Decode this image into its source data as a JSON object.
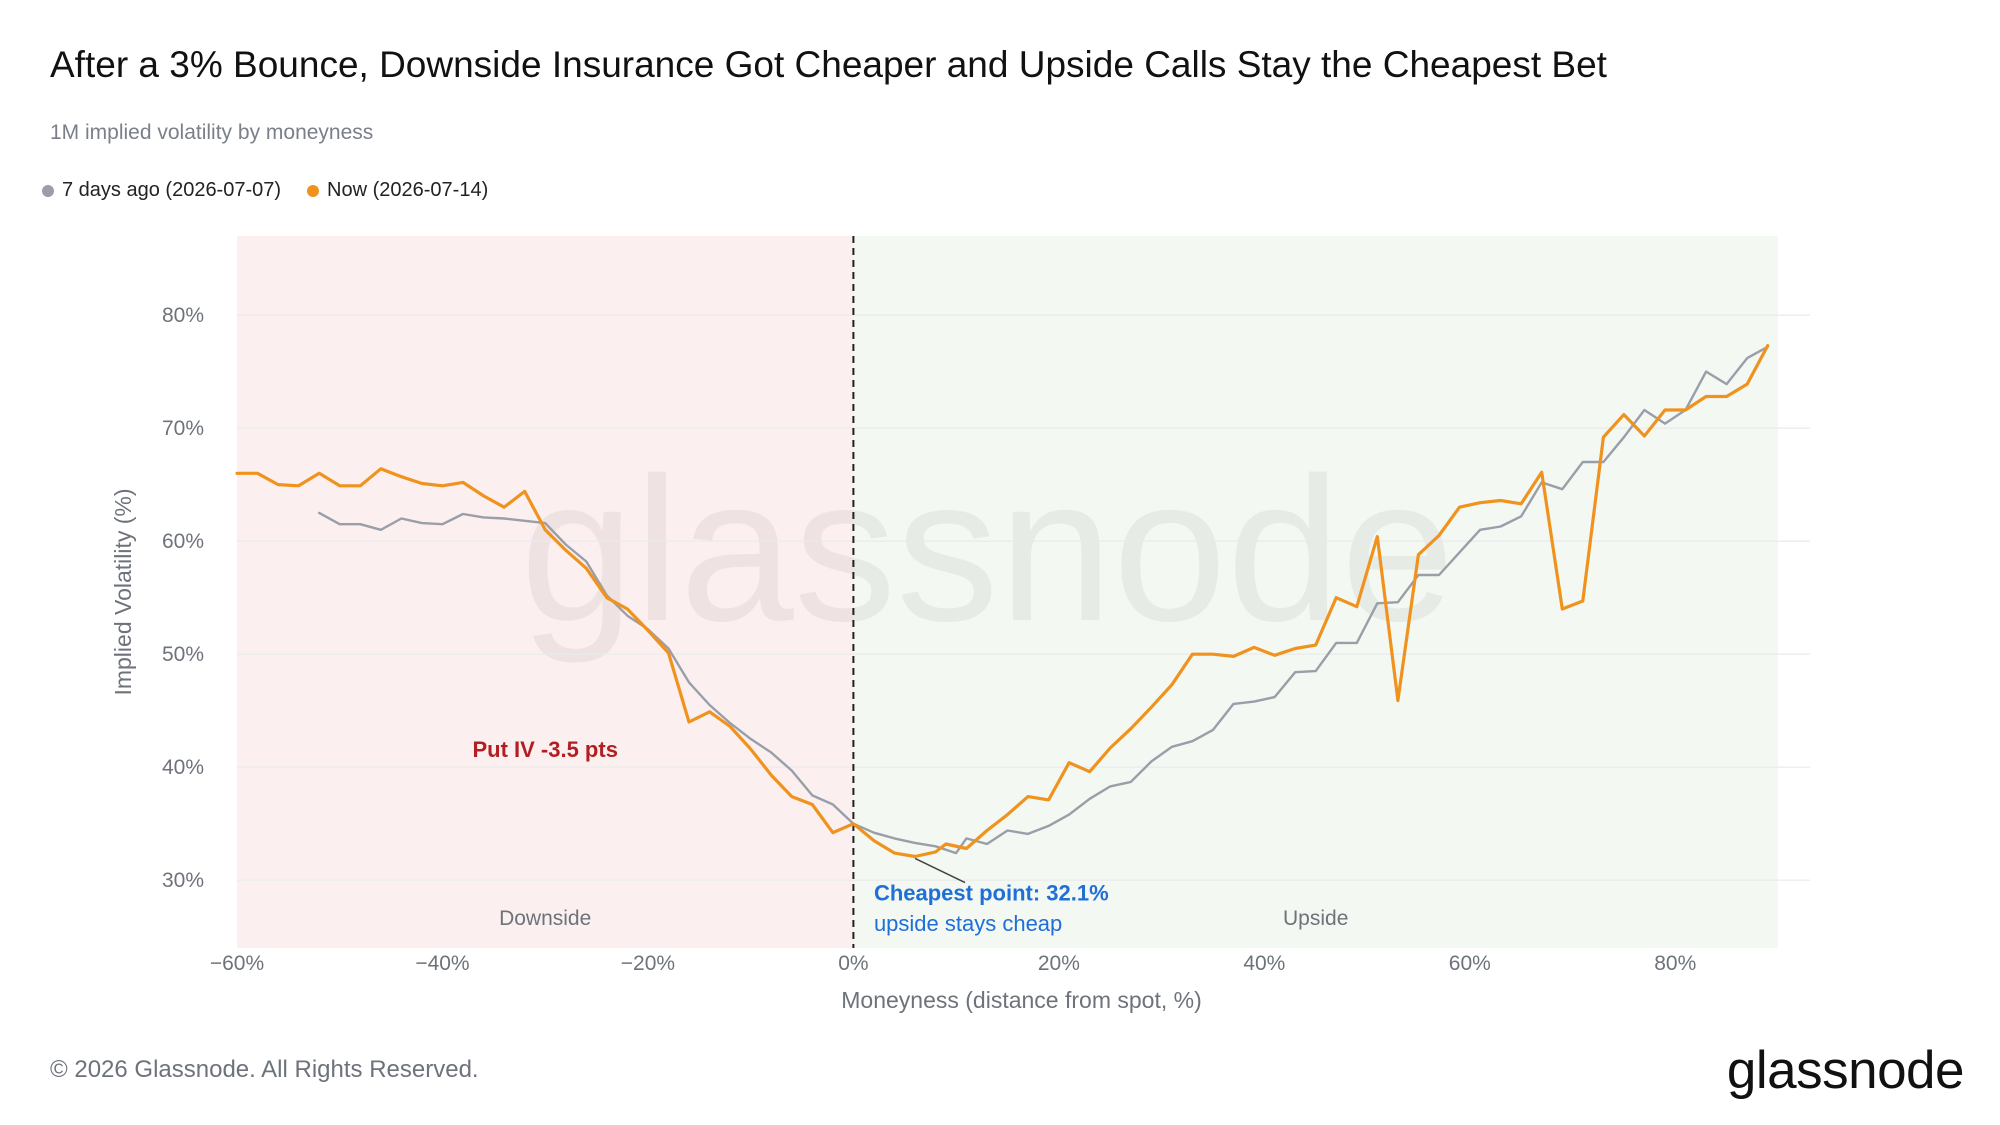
{
  "page": {
    "title": "After a 3% Bounce, Downside Insurance Got Cheaper and Upside Calls Stay the Cheapest Bet",
    "subtitle": "1M implied volatility by moneyness",
    "footer": "© 2026 Glassnode. All Rights Reserved.",
    "logo": "glassnode",
    "watermark": "glassnode"
  },
  "colors": {
    "series_old": "#9a9ea8",
    "series_now": "#f0921e",
    "downside_bg": "#fbf0ef",
    "upside_bg": "#f3f8f3",
    "annotation_put": "#b21f22",
    "annotation_cheap": "#1f6fd6",
    "axis_text": "#6e737b",
    "grid": "#e9eaec"
  },
  "chart_data": {
    "type": "line",
    "title": "After a 3% Bounce, Downside Insurance Got Cheaper and Upside Calls Stay the Cheapest Bet",
    "subtitle": "1M implied volatility by moneyness",
    "xlabel": "Moneyness (distance from spot, %)",
    "ylabel": "Implied Volatility (%)",
    "xlim": [
      -60,
      90
    ],
    "ylim": [
      24,
      87
    ],
    "x_ticks": [
      -60,
      -40,
      -20,
      0,
      20,
      40,
      60,
      80
    ],
    "x_tick_labels": [
      "−60%",
      "−40%",
      "−20%",
      "0%",
      "20%",
      "40%",
      "60%",
      "80%"
    ],
    "y_ticks": [
      30,
      40,
      50,
      60,
      70,
      80
    ],
    "y_tick_labels": [
      "30%",
      "40%",
      "50%",
      "60%",
      "70%",
      "80%"
    ],
    "grid": true,
    "legend_position": "top-left",
    "regions": [
      {
        "label": "Downside",
        "x_from": -60,
        "x_to": 0,
        "label_x": -30
      },
      {
        "label": "Upside",
        "x_from": 0,
        "x_to": 90,
        "label_x": 45
      }
    ],
    "reference_line_x": 0,
    "series": [
      {
        "name": "7 days ago (2026-07-07)",
        "color": "#9a9ea8",
        "points": [
          [
            -52,
            62.5
          ],
          [
            -50,
            61.5
          ],
          [
            -48,
            61.5
          ],
          [
            -46,
            61
          ],
          [
            -44,
            62
          ],
          [
            -42,
            61.6
          ],
          [
            -40,
            61.5
          ],
          [
            -38,
            62.4
          ],
          [
            -36,
            62.1
          ],
          [
            -34,
            62
          ],
          [
            -32,
            61.8
          ],
          [
            -30,
            61.6
          ],
          [
            -28,
            59.7
          ],
          [
            -26,
            58.2
          ],
          [
            -24,
            55.2
          ],
          [
            -22,
            53.4
          ],
          [
            -20,
            52.2
          ],
          [
            -18,
            50.5
          ],
          [
            -16,
            47.5
          ],
          [
            -14,
            45.5
          ],
          [
            -12,
            43.9
          ],
          [
            -10,
            42.5
          ],
          [
            -8,
            41.3
          ],
          [
            -6,
            39.7
          ],
          [
            -4,
            37.5
          ],
          [
            -2,
            36.7
          ],
          [
            0,
            35
          ],
          [
            2,
            34.2
          ],
          [
            4,
            33.7
          ],
          [
            6,
            33.3
          ],
          [
            8,
            33
          ],
          [
            10,
            32.4
          ],
          [
            11,
            33.7
          ],
          [
            13,
            33.2
          ],
          [
            15,
            34.4
          ],
          [
            17,
            34.1
          ],
          [
            19,
            34.8
          ],
          [
            21,
            35.8
          ],
          [
            23,
            37.2
          ],
          [
            25,
            38.3
          ],
          [
            27,
            38.7
          ],
          [
            29,
            40.5
          ],
          [
            31,
            41.8
          ],
          [
            33,
            42.3
          ],
          [
            35,
            43.3
          ],
          [
            37,
            45.6
          ],
          [
            39,
            45.8
          ],
          [
            41,
            46.2
          ],
          [
            43,
            48.4
          ],
          [
            45,
            48.5
          ],
          [
            47,
            51
          ],
          [
            49,
            51
          ],
          [
            51,
            54.5
          ],
          [
            53,
            54.6
          ],
          [
            55,
            57
          ],
          [
            57,
            57
          ],
          [
            59,
            59
          ],
          [
            61,
            61
          ],
          [
            63,
            61.3
          ],
          [
            65,
            62.2
          ],
          [
            67,
            65.2
          ],
          [
            69,
            64.6
          ],
          [
            71,
            67
          ],
          [
            73,
            67
          ],
          [
            75,
            69.2
          ],
          [
            77,
            71.6
          ],
          [
            79,
            70.4
          ],
          [
            81,
            71.6
          ],
          [
            83,
            75
          ],
          [
            85,
            73.9
          ],
          [
            87,
            76.2
          ],
          [
            89,
            77.2
          ]
        ]
      },
      {
        "name": "Now (2026-07-14)",
        "color": "#f0921e",
        "points": [
          [
            -60,
            66
          ],
          [
            -58,
            66
          ],
          [
            -56,
            65
          ],
          [
            -54,
            64.9
          ],
          [
            -52,
            66
          ],
          [
            -50,
            64.9
          ],
          [
            -48,
            64.9
          ],
          [
            -46,
            66.4
          ],
          [
            -44,
            65.7
          ],
          [
            -42,
            65.1
          ],
          [
            -40,
            64.9
          ],
          [
            -38,
            65.2
          ],
          [
            -36,
            64
          ],
          [
            -34,
            63
          ],
          [
            -32,
            64.4
          ],
          [
            -30,
            61
          ],
          [
            -28,
            59.2
          ],
          [
            -26,
            57.6
          ],
          [
            -24,
            55
          ],
          [
            -22,
            54
          ],
          [
            -20,
            52.1
          ],
          [
            -18,
            50.1
          ],
          [
            -16,
            44
          ],
          [
            -14,
            44.9
          ],
          [
            -12,
            43.6
          ],
          [
            -10,
            41.6
          ],
          [
            -8,
            39.3
          ],
          [
            -6,
            37.4
          ],
          [
            -4,
            36.7
          ],
          [
            -2,
            34.2
          ],
          [
            0,
            35
          ],
          [
            2,
            33.5
          ],
          [
            4,
            32.4
          ],
          [
            6,
            32.1
          ],
          [
            8,
            32.5
          ],
          [
            9,
            33.2
          ],
          [
            11,
            32.8
          ],
          [
            13,
            34.4
          ],
          [
            15,
            35.8
          ],
          [
            17,
            37.4
          ],
          [
            19,
            37.1
          ],
          [
            21,
            40.4
          ],
          [
            23,
            39.6
          ],
          [
            25,
            41.7
          ],
          [
            27,
            43.4
          ],
          [
            29,
            45.3
          ],
          [
            31,
            47.3
          ],
          [
            33,
            50
          ],
          [
            35,
            50
          ],
          [
            37,
            49.8
          ],
          [
            39,
            50.6
          ],
          [
            41,
            49.9
          ],
          [
            43,
            50.5
          ],
          [
            45,
            50.8
          ],
          [
            47,
            55
          ],
          [
            49,
            54.2
          ],
          [
            51,
            60.4
          ],
          [
            53,
            45.9
          ],
          [
            55,
            58.8
          ],
          [
            57,
            60.5
          ],
          [
            59,
            63
          ],
          [
            61,
            63.4
          ],
          [
            63,
            63.6
          ],
          [
            65,
            63.3
          ],
          [
            67,
            66.1
          ],
          [
            69,
            54
          ],
          [
            71,
            54.7
          ],
          [
            73,
            69.2
          ],
          [
            75,
            71.2
          ],
          [
            77,
            69.3
          ],
          [
            79,
            71.6
          ],
          [
            81,
            71.6
          ],
          [
            83,
            72.8
          ],
          [
            85,
            72.8
          ],
          [
            87,
            73.9
          ],
          [
            89,
            77.3
          ]
        ]
      }
    ],
    "annotations": [
      {
        "text": "Put IV -3.5 pts",
        "x": -30,
        "y": 40.9,
        "color": "#b21f22"
      },
      {
        "text": "Cheapest point: 32.1%",
        "x": 2,
        "y": 28.2,
        "color": "#1f6fd6",
        "bold": true,
        "arrow_to": [
          6,
          32.1
        ]
      },
      {
        "text": "upside stays cheap",
        "x": 2,
        "y": 25.5,
        "color": "#1f6fd6"
      }
    ]
  }
}
